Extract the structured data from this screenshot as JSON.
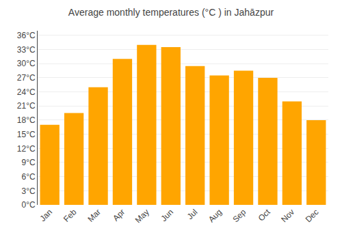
{
  "chart_data": {
    "type": "bar",
    "title": "Average monthly temperatures (°C ) in Jahāzpur",
    "categories": [
      "Jan",
      "Feb",
      "Mar",
      "Apr",
      "May",
      "Jun",
      "Jul",
      "Aug",
      "Sep",
      "Oct",
      "Nov",
      "Dec"
    ],
    "values": [
      17,
      19.5,
      25,
      31,
      34,
      33.5,
      29.5,
      27.5,
      28.5,
      27,
      22,
      18
    ],
    "color": "#FFA500",
    "ylim": [
      0,
      37
    ],
    "yticks": [
      {
        "value": 0,
        "label": "0°C"
      },
      {
        "value": 3,
        "label": "3°C"
      },
      {
        "value": 6,
        "label": "6°C"
      },
      {
        "value": 9,
        "label": "9°C"
      },
      {
        "value": 12,
        "label": "12°C"
      },
      {
        "value": 15,
        "label": "15°C"
      },
      {
        "value": 18,
        "label": "18°C"
      },
      {
        "value": 21,
        "label": "21°C"
      },
      {
        "value": 24,
        "label": "24°C"
      },
      {
        "value": 27,
        "label": "27°C"
      },
      {
        "value": 30,
        "label": "30°C"
      },
      {
        "value": 33,
        "label": "33°C"
      },
      {
        "value": 36,
        "label": "36°C"
      }
    ],
    "grid": true
  }
}
